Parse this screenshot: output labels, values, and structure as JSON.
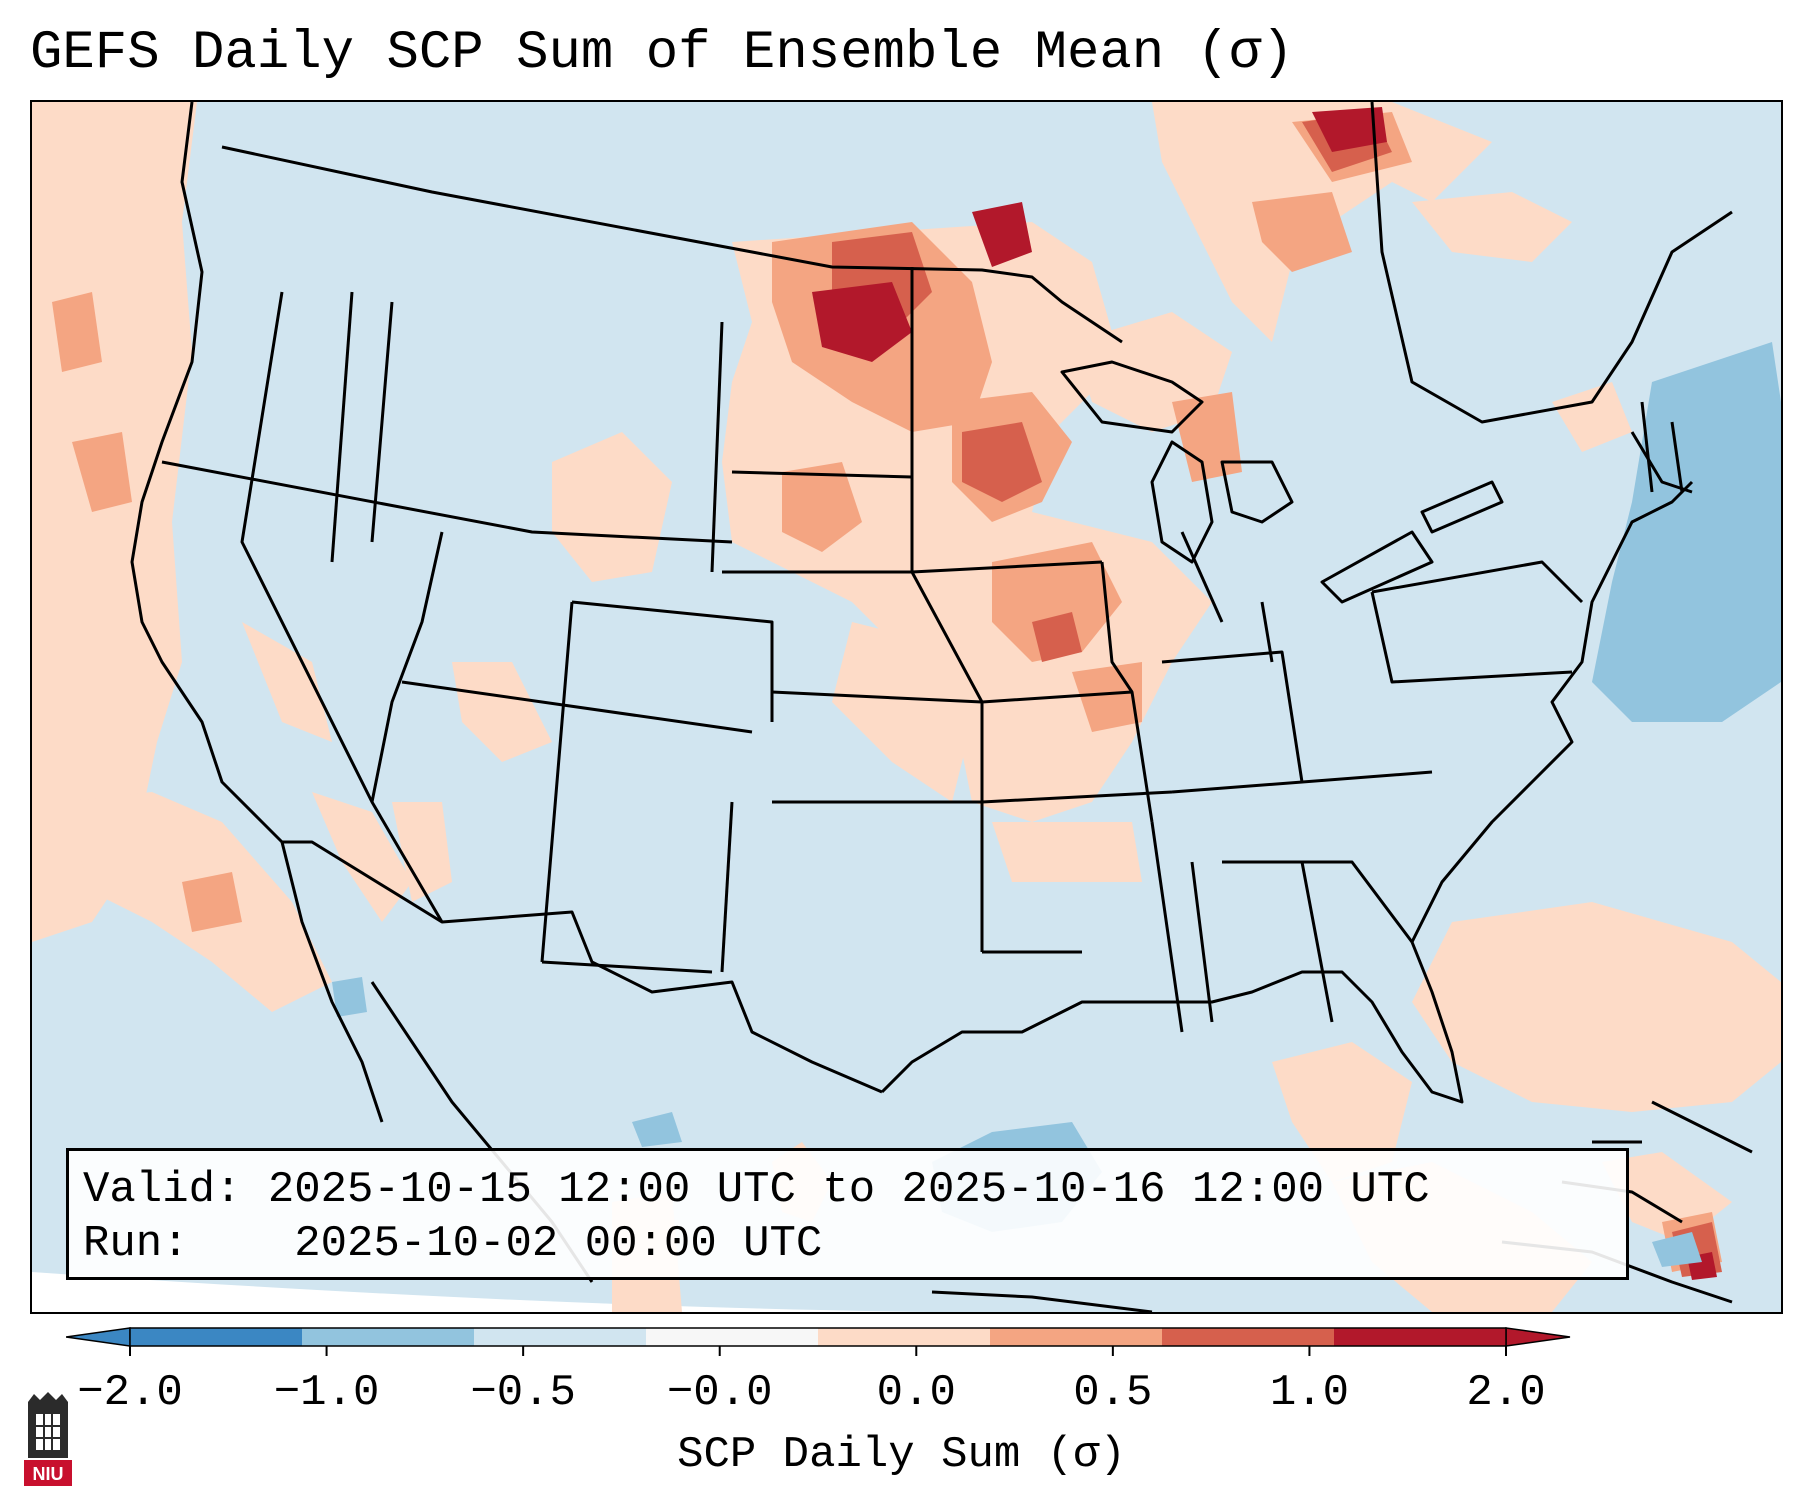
{
  "title": "GEFS Daily SCP Sum of Ensemble Mean (σ)",
  "info": {
    "valid_label": "Valid:",
    "valid_value": "2025-10-15 12:00 UTC to 2025-10-16 12:00 UTC",
    "run_label": "Run:",
    "run_value": "2025-10-02 00:00 UTC"
  },
  "colorbar": {
    "label": "SCP Daily Sum (σ)",
    "ticks": [
      "−2.0",
      "−1.0",
      "−0.5",
      "−0.0",
      "0.0",
      "0.5",
      "1.0",
      "2.0"
    ],
    "colors": [
      "#3b87c3",
      "#92c4de",
      "#d1e5f0",
      "#f7f7f7",
      "#fddbc7",
      "#f4a582",
      "#d6604d",
      "#b2182b"
    ]
  },
  "logo": {
    "text": "NIU"
  },
  "colors": {
    "background_field": "#d1e5f0",
    "strong_negative": "#92c4de",
    "weak_positive": "#fddbc7",
    "moderate_positive": "#f4a582",
    "strong_positive": "#d6604d",
    "extreme_positive": "#b2182b"
  }
}
